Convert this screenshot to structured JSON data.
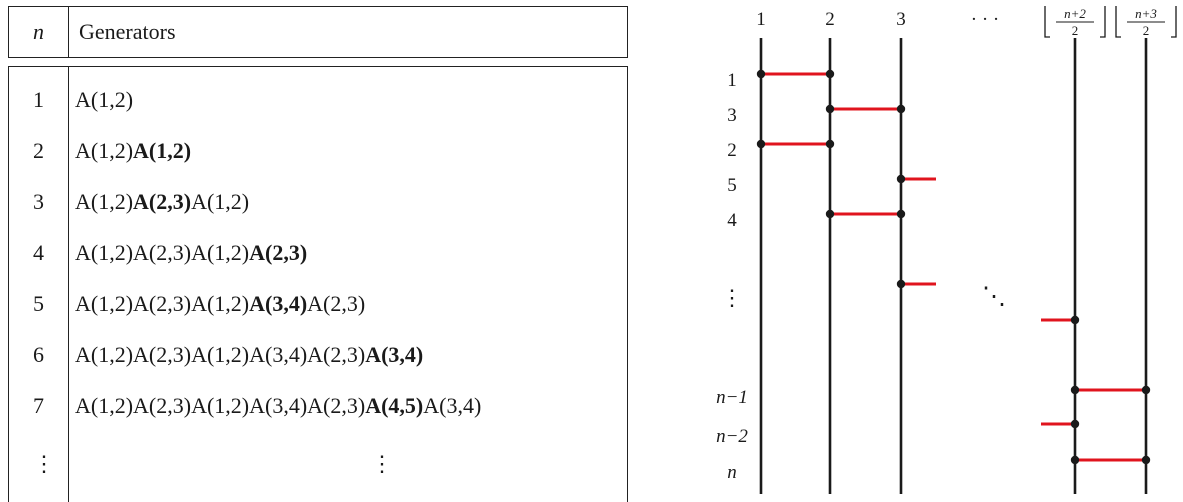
{
  "table": {
    "header": {
      "n": "n",
      "generators": "Generators"
    },
    "rows": [
      {
        "n": "1",
        "parts": [
          {
            "text": "A(1,2)",
            "bold": false
          }
        ]
      },
      {
        "n": "2",
        "parts": [
          {
            "text": "A(1,2)",
            "bold": false
          },
          {
            "text": "A(1,2)",
            "bold": true
          }
        ]
      },
      {
        "n": "3",
        "parts": [
          {
            "text": "A(1,2)",
            "bold": false
          },
          {
            "text": "A(2,3)",
            "bold": true
          },
          {
            "text": "A(1,2)",
            "bold": false
          }
        ]
      },
      {
        "n": "4",
        "parts": [
          {
            "text": "A(1,2)A(2,3)A(1,2)",
            "bold": false
          },
          {
            "text": "A(2,3)",
            "bold": true
          }
        ]
      },
      {
        "n": "5",
        "parts": [
          {
            "text": "A(1,2)A(2,3)A(1,2)",
            "bold": false
          },
          {
            "text": "A(3,4)",
            "bold": true
          },
          {
            "text": "A(2,3)",
            "bold": false
          }
        ]
      },
      {
        "n": "6",
        "parts": [
          {
            "text": "A(1,2)A(2,3)A(1,2)A(3,4)A(2,3)",
            "bold": false
          },
          {
            "text": "A(3,4)",
            "bold": true
          }
        ]
      },
      {
        "n": "7",
        "parts": [
          {
            "text": "A(1,2)A(2,3)A(1,2)A(3,4)A(2,3)",
            "bold": false
          },
          {
            "text": "A(4,5)",
            "bold": true
          },
          {
            "text": "A(3,4)",
            "bold": false
          }
        ]
      }
    ],
    "ellipsis": "⋮"
  },
  "diagram": {
    "column_labels": [
      "1",
      "2",
      "3",
      "· · ·",
      "⌊(n+2)/2⌋",
      "⌊(n+3)/2⌋"
    ],
    "row_labels": [
      "1",
      "3",
      "2",
      "5",
      "4",
      "⋮",
      "n−1",
      "n−2",
      "n"
    ],
    "diag_ellipsis": "⋱",
    "colors": {
      "rung": "#e0141e",
      "strand": "#1a1a1a",
      "dot": "#1a1a1a"
    }
  }
}
